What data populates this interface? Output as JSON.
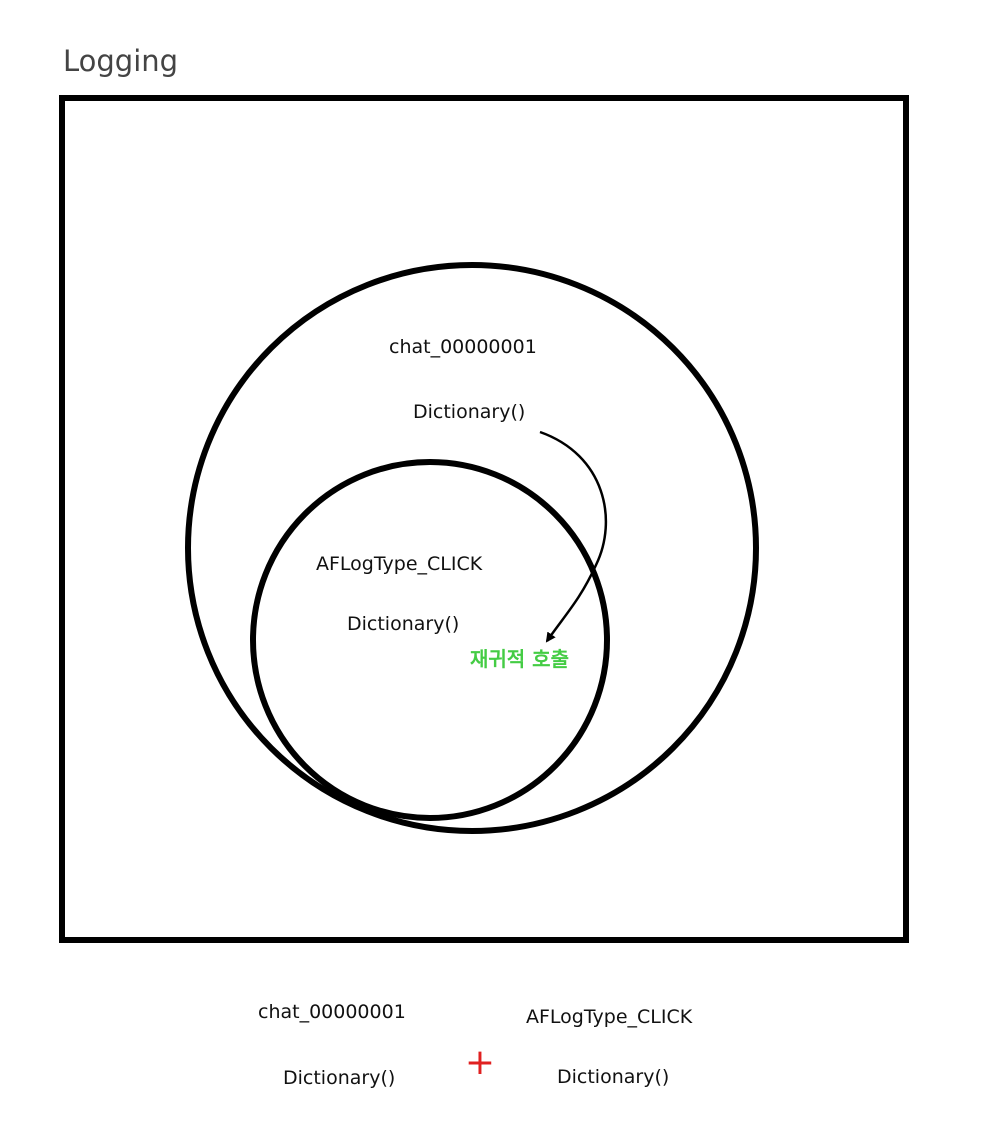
{
  "title": "Logging",
  "outer_scope": {
    "name": "chat_00000001",
    "value": "Dictionary()"
  },
  "inner_scope": {
    "name": "AFLogType_CLICK",
    "value": "Dictionary()"
  },
  "recursion_note": "재귀적 호출",
  "merge": {
    "left_name": "chat_00000001",
    "left_value": "Dictionary()",
    "operator": "+",
    "right_name": "AFLogType_CLICK",
    "right_value": "Dictionary()"
  },
  "colors": {
    "stroke": "#000000",
    "title": "#444444",
    "text": "#111111",
    "note": "#44cc44",
    "operator": "#e02020"
  }
}
